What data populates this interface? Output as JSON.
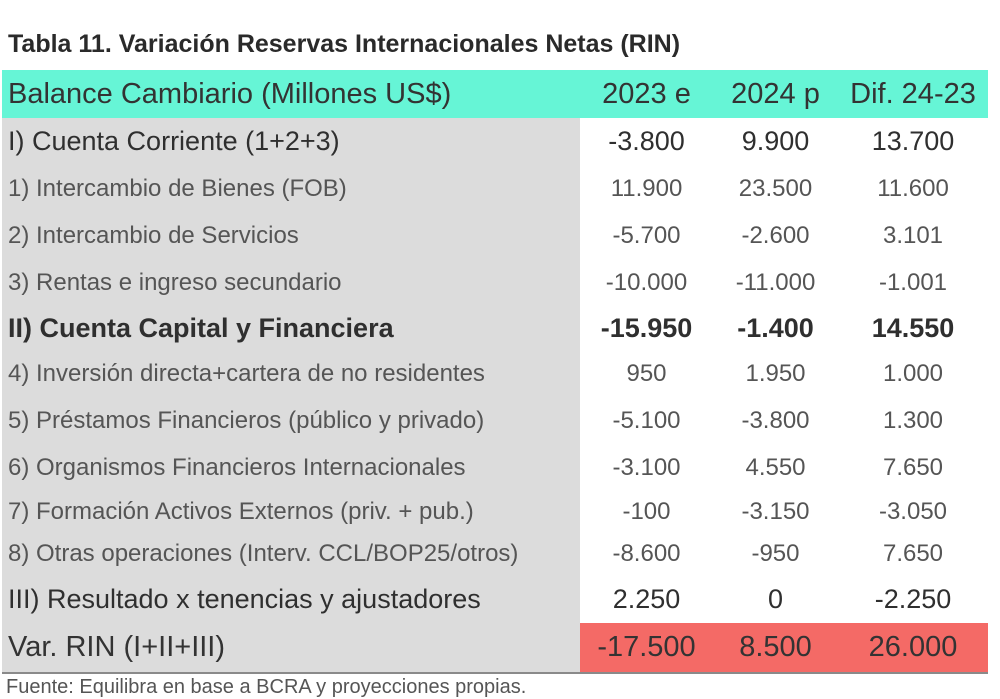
{
  "title": "Tabla 11. Variación Reservas Internacionales Netas (RIN)",
  "header": {
    "label": "Balance Cambiario (Millones US$)",
    "col1": "2023 e",
    "col2": "2024 p",
    "col3": "Dif. 24-23"
  },
  "rows": [
    {
      "label": "I) Cuenta Corriente (1+2+3)",
      "v1": "-3.800",
      "v2": "9.900",
      "v3": "13.700"
    },
    {
      "label": "1) Intercambio de Bienes (FOB)",
      "v1": "11.900",
      "v2": "23.500",
      "v3": "11.600"
    },
    {
      "label": "2) Intercambio de Servicios",
      "v1": "-5.700",
      "v2": "-2.600",
      "v3": "3.101"
    },
    {
      "label": "3) Rentas e ingreso secundario",
      "v1": "-10.000",
      "v2": "-11.000",
      "v3": "-1.001"
    },
    {
      "label": "II) Cuenta Capital y Financiera",
      "v1": "-15.950",
      "v2": "-1.400",
      "v3": "14.550"
    },
    {
      "label": "4) Inversión directa+cartera de no residentes",
      "v1": "950",
      "v2": "1.950",
      "v3": "1.000"
    },
    {
      "label": "5) Préstamos Financieros (público y privado)",
      "v1": "-5.100",
      "v2": "-3.800",
      "v3": "1.300"
    },
    {
      "label": "6) Organismos Financieros Internacionales",
      "v1": "-3.100",
      "v2": "4.550",
      "v3": "7.650"
    },
    {
      "label": "7) Formación Activos Externos (priv. + pub.)",
      "v1": "-100",
      "v2": "-3.150",
      "v3": "-3.050"
    },
    {
      "label": "8) Otras operaciones (Interv. CCL/BOP25/otros)",
      "v1": "-8.600",
      "v2": "-950",
      "v3": "7.650"
    },
    {
      "label": "III) Resultado x tenencias y ajustadores",
      "v1": "2.250",
      "v2": "0",
      "v3": "-2.250"
    }
  ],
  "total": {
    "label": "Var. RIN (I+II+III)",
    "v1": "-17.500",
    "v2": "8.500",
    "v3": "26.000"
  },
  "footer": "Fuente: Equilibra en base a BCRA y proyecciones propias.",
  "colors": {
    "header_bg": "#66f5d6",
    "label_bg": "#dcdcdc",
    "total_bg": "#f46a66"
  }
}
